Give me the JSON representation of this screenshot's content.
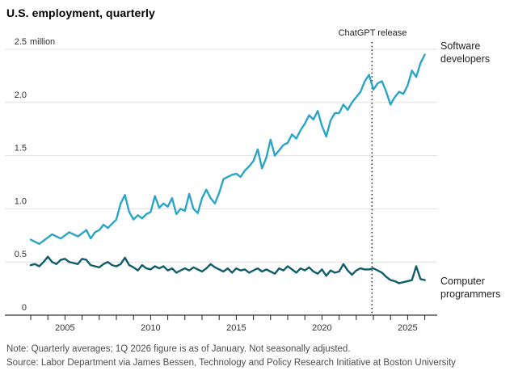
{
  "page": {
    "title": "U.S. employment, quarterly"
  },
  "annotation": {
    "label": "ChatGPT release",
    "x": 2022.92
  },
  "series_labels": {
    "developers": "Software developers",
    "programmers": "Computer programmers"
  },
  "footer": {
    "note": "Note: Quarterly averages; 1Q 2026 figure is as of January. Not seasonally adjusted.",
    "source": "Source: Labor Department via James Bessen, Technology and Policy Research Initiative at Boston University"
  },
  "colors": {
    "developers": "#2AA5C6",
    "programmers": "#0F5D6C",
    "grid": "#e0e0e0",
    "axis": "#000000",
    "tick": "#222222",
    "annotation": "#222222",
    "tick_text": "#333333"
  },
  "chart_data": {
    "type": "line",
    "title": "U.S. employment, quarterly",
    "unit": "million",
    "x_start": 2003,
    "x_step": 0.25,
    "xlim": [
      2003,
      2026.3
    ],
    "ylim": [
      0,
      2.5
    ],
    "grid": "horizontal",
    "legend_position": "right-of-line-ends",
    "y_ticks": [
      {
        "value": 0,
        "label": "0"
      },
      {
        "value": 0.5,
        "label": "0.5"
      },
      {
        "value": 1,
        "label": "1.0"
      },
      {
        "value": 1.5,
        "label": "1.5"
      },
      {
        "value": 2,
        "label": "2.0"
      },
      {
        "value": 2.5,
        "label": "2.5 million"
      }
    ],
    "x_ticks_labeled": [
      2005,
      2010,
      2015,
      2020,
      2025
    ],
    "x_minor_tick_every_years": 1,
    "annotations": [
      {
        "type": "vline",
        "style": "dotted",
        "x": 2022.92,
        "label": "ChatGPT release"
      }
    ],
    "series": [
      {
        "name": "Software developers",
        "color": "#2AA5C6",
        "values": [
          0.71,
          0.69,
          0.67,
          0.7,
          0.73,
          0.76,
          0.74,
          0.72,
          0.75,
          0.78,
          0.76,
          0.74,
          0.77,
          0.8,
          0.72,
          0.78,
          0.8,
          0.85,
          0.82,
          0.86,
          0.9,
          1.05,
          1.13,
          0.97,
          0.9,
          0.94,
          0.91,
          0.95,
          0.97,
          1.12,
          1.01,
          1.05,
          1.02,
          1.1,
          0.95,
          1.0,
          0.98,
          1.14,
          1.0,
          0.96,
          1.1,
          1.18,
          1.1,
          1.05,
          1.15,
          1.28,
          1.3,
          1.32,
          1.33,
          1.3,
          1.36,
          1.4,
          1.45,
          1.56,
          1.38,
          1.48,
          1.65,
          1.5,
          1.55,
          1.6,
          1.62,
          1.7,
          1.66,
          1.74,
          1.8,
          1.88,
          1.84,
          1.92,
          1.78,
          1.68,
          1.83,
          1.9,
          1.9,
          1.98,
          1.93,
          2.0,
          2.05,
          2.1,
          2.2,
          2.26,
          2.12,
          2.18,
          2.2,
          2.1,
          1.98,
          2.05,
          2.1,
          2.08,
          2.16,
          2.3,
          2.24,
          2.37,
          2.45
        ]
      },
      {
        "name": "Computer programmers",
        "color": "#0F5D6C",
        "values": [
          0.47,
          0.48,
          0.46,
          0.5,
          0.55,
          0.5,
          0.48,
          0.52,
          0.53,
          0.5,
          0.49,
          0.48,
          0.53,
          0.52,
          0.47,
          0.46,
          0.45,
          0.48,
          0.5,
          0.47,
          0.46,
          0.48,
          0.54,
          0.47,
          0.45,
          0.42,
          0.47,
          0.44,
          0.43,
          0.46,
          0.44,
          0.46,
          0.42,
          0.44,
          0.4,
          0.42,
          0.44,
          0.42,
          0.45,
          0.43,
          0.41,
          0.44,
          0.48,
          0.45,
          0.43,
          0.41,
          0.44,
          0.4,
          0.44,
          0.42,
          0.43,
          0.4,
          0.42,
          0.44,
          0.41,
          0.43,
          0.41,
          0.39,
          0.44,
          0.42,
          0.46,
          0.43,
          0.4,
          0.44,
          0.42,
          0.45,
          0.41,
          0.39,
          0.43,
          0.37,
          0.42,
          0.4,
          0.41,
          0.48,
          0.42,
          0.38,
          0.42,
          0.44,
          0.43,
          0.43,
          0.44,
          0.42,
          0.4,
          0.36,
          0.33,
          0.32,
          0.3,
          0.31,
          0.32,
          0.33,
          0.46,
          0.34,
          0.33
        ]
      }
    ]
  }
}
